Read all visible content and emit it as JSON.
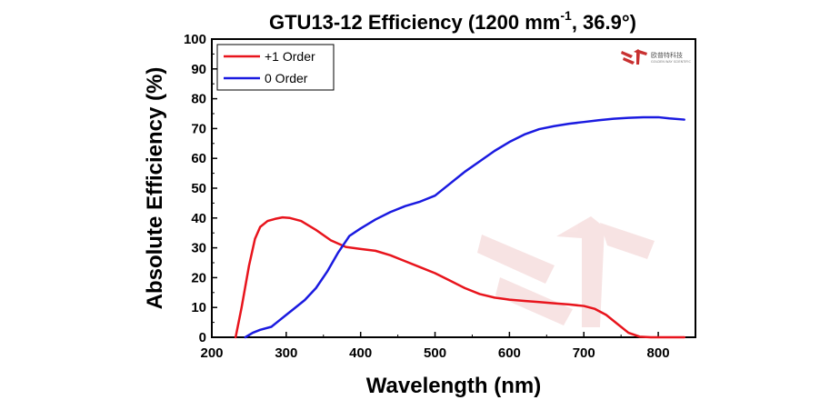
{
  "chart_data": {
    "type": "line",
    "title": "GTU13-12 Efficiency (1200 mm",
    "title_superscript": "-1",
    "title_suffix": ", 36.9°)",
    "xlabel": "Wavelength (nm)",
    "ylabel": "Absolute Efficiency (%)",
    "xlim": [
      200,
      850
    ],
    "ylim": [
      0,
      100
    ],
    "x_ticks": [
      200,
      300,
      400,
      500,
      600,
      700,
      800
    ],
    "y_ticks": [
      0,
      10,
      20,
      30,
      40,
      50,
      60,
      70,
      80,
      90,
      100
    ],
    "grid": false,
    "legend_position": "top-left",
    "series": [
      {
        "name": "+1 Order",
        "color": "#e8141c",
        "x": [
          232,
          240,
          250,
          258,
          265,
          275,
          285,
          295,
          305,
          320,
          340,
          360,
          380,
          400,
          420,
          440,
          460,
          480,
          500,
          520,
          540,
          560,
          580,
          600,
          620,
          640,
          660,
          680,
          700,
          715,
          730,
          745,
          760,
          775,
          790,
          810,
          835
        ],
        "y": [
          0,
          10,
          24,
          33,
          37,
          39,
          39.7,
          40.2,
          40,
          39,
          36,
          32.5,
          30.3,
          29.6,
          29,
          27.5,
          25.5,
          23.5,
          21.5,
          19,
          16.5,
          14.5,
          13.3,
          12.6,
          12.2,
          11.8,
          11.4,
          11,
          10.5,
          9.5,
          7.5,
          4.5,
          1.5,
          0.2,
          0,
          0,
          0
        ]
      },
      {
        "name": "0 Order",
        "color": "#1a1ae0",
        "x": [
          245,
          255,
          265,
          280,
          290,
          300,
          310,
          325,
          340,
          355,
          370,
          385,
          400,
          420,
          440,
          460,
          480,
          500,
          520,
          540,
          560,
          580,
          600,
          620,
          640,
          660,
          680,
          700,
          720,
          740,
          760,
          780,
          800,
          815,
          835
        ],
        "y": [
          0,
          1.5,
          2.5,
          3.5,
          5.5,
          7.5,
          9.5,
          12.5,
          16.5,
          22,
          28.5,
          34,
          36.5,
          39.5,
          42,
          44,
          45.5,
          47.5,
          51.5,
          55.5,
          59,
          62.5,
          65.5,
          68,
          69.8,
          70.8,
          71.6,
          72.2,
          72.8,
          73.3,
          73.6,
          73.8,
          73.8,
          73.4,
          73
        ]
      }
    ]
  },
  "logo": {
    "text": "欧普特科技",
    "subtext": "GOLDEN WAY SCIENTIFIC"
  }
}
